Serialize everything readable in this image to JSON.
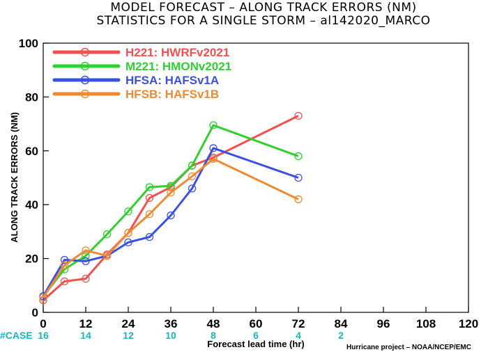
{
  "chart_data": {
    "type": "line",
    "title": "MODEL FORECAST – ALONG TRACK ERRORS (NM)",
    "subtitle": "STATISTICS FOR A SINGLE STORM – al142020_MARCO",
    "xlabel": "Forecast lead time (hr)",
    "ylabel": "ALONG TRACK ERRORS (NM)",
    "xlim": [
      0,
      120
    ],
    "ylim": [
      0,
      100
    ],
    "x_ticks": [
      "0",
      "12",
      "24",
      "36",
      "48",
      "60",
      "72",
      "84",
      "96",
      "108",
      "120"
    ],
    "y_ticks": [
      "0",
      "20",
      "40",
      "60",
      "80",
      "100"
    ],
    "legend_position": "top-left",
    "series": [
      {
        "name": "H221: HWRFv2021",
        "color": "#f05050",
        "x": [
          0,
          6,
          12,
          18,
          24,
          30,
          36,
          42,
          48,
          72
        ],
        "y": [
          4.5,
          11.5,
          12.5,
          21.5,
          29.5,
          42.5,
          46.5,
          54.5,
          57.5,
          73
        ]
      },
      {
        "name": "M221: HMONv2021",
        "color": "#2fd02f",
        "x": [
          0,
          6,
          12,
          18,
          24,
          30,
          36,
          42,
          48,
          72
        ],
        "y": [
          6,
          16,
          21,
          29,
          37.5,
          46.5,
          47,
          54.5,
          69.5,
          58
        ]
      },
      {
        "name": "HFSA: HAFSv1A",
        "color": "#3a50e0",
        "x": [
          0,
          6,
          12,
          18,
          24,
          30,
          36,
          42,
          48,
          72
        ],
        "y": [
          6,
          19.5,
          19,
          21,
          26,
          28,
          36,
          46,
          61,
          50
        ]
      },
      {
        "name": "HFSB: HAFSv1B",
        "color": "#f08a30",
        "x": [
          0,
          6,
          12,
          18,
          24,
          30,
          36,
          42,
          48,
          72
        ],
        "y": [
          5.5,
          17.5,
          23,
          21,
          29.5,
          36.5,
          44.5,
          50.5,
          57,
          42
        ]
      }
    ],
    "case_counts": {
      "label": "#CASE",
      "x": [
        0,
        12,
        24,
        36,
        48,
        60,
        72,
        84
      ],
      "values": [
        "16",
        "14",
        "12",
        "10",
        "8",
        "6",
        "4",
        "2"
      ]
    },
    "credit": "Hurricane project – NOAA/NCEP/EMC"
  }
}
